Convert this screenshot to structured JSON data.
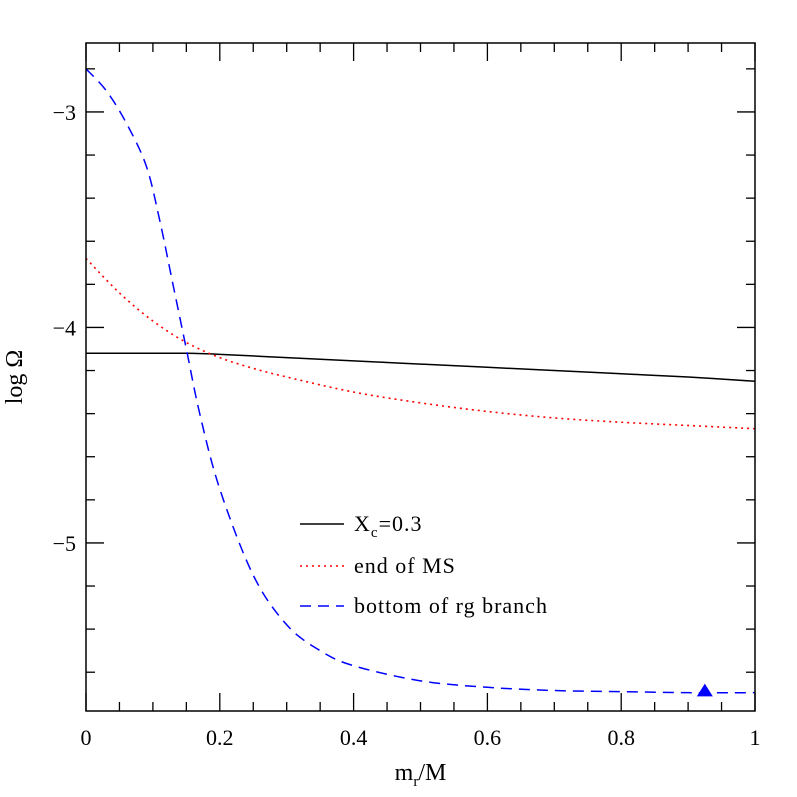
{
  "chart_data": {
    "type": "line",
    "xlabel": "m",
    "xlabel_sub": "r",
    "xlabel_suffix": "/M",
    "ylabel": "log Ω",
    "xlim": [
      0,
      1
    ],
    "ylim": [
      -5.78,
      -2.68
    ],
    "x_ticks": [
      0,
      0.2,
      0.4,
      0.6,
      0.8,
      1
    ],
    "x_tick_labels": [
      "0",
      "0.2",
      "0.4",
      "0.6",
      "0.8",
      "1"
    ],
    "y_ticks": [
      -3,
      -4,
      -5
    ],
    "y_tick_labels": [
      "−3",
      "−4",
      "−5"
    ],
    "legend_position": "center-bottom",
    "series": [
      {
        "name": "X",
        "name_sub": "c",
        "name_suffix": "=0.3",
        "color": "#000000",
        "style": "solid",
        "x": [
          0,
          0.1,
          0.15,
          0.2,
          0.3,
          0.4,
          0.5,
          0.6,
          0.7,
          0.8,
          0.9,
          1.0
        ],
        "y": [
          -4.12,
          -4.12,
          -4.12,
          -4.125,
          -4.14,
          -4.155,
          -4.17,
          -4.185,
          -4.2,
          -4.215,
          -4.23,
          -4.25
        ]
      },
      {
        "name": "end of MS",
        "color": "#ff0000",
        "style": "dotted",
        "x": [
          0,
          0.05,
          0.1,
          0.15,
          0.2,
          0.25,
          0.3,
          0.4,
          0.5,
          0.6,
          0.7,
          0.8,
          0.9,
          1.0
        ],
        "y": [
          -3.68,
          -3.84,
          -3.97,
          -4.07,
          -4.14,
          -4.19,
          -4.23,
          -4.3,
          -4.35,
          -4.39,
          -4.42,
          -4.44,
          -4.455,
          -4.47
        ]
      },
      {
        "name": "bottom of rg branch",
        "color": "#0000ff",
        "style": "dashed",
        "x": [
          0,
          0.03,
          0.06,
          0.09,
          0.11,
          0.13,
          0.15,
          0.17,
          0.2,
          0.25,
          0.3,
          0.35,
          0.4,
          0.5,
          0.6,
          0.7,
          0.8,
          0.9,
          1.0
        ],
        "y": [
          -2.8,
          -2.9,
          -3.05,
          -3.25,
          -3.5,
          -3.8,
          -4.1,
          -4.4,
          -4.75,
          -5.15,
          -5.38,
          -5.5,
          -5.57,
          -5.64,
          -5.67,
          -5.685,
          -5.69,
          -5.695,
          -5.695
        ]
      }
    ],
    "markers": [
      {
        "shape": "triangle",
        "color": "#0000ff",
        "x": 0.925,
        "y": -5.69
      }
    ]
  }
}
